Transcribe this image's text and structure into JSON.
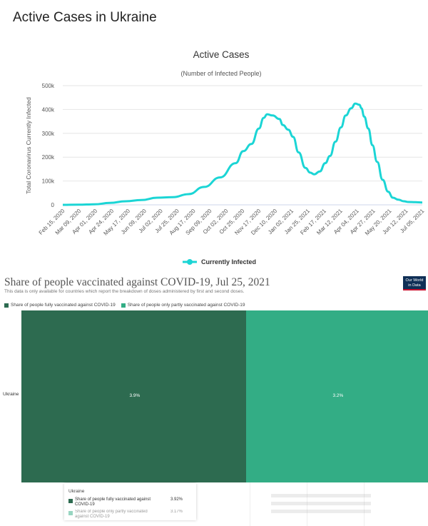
{
  "page_title": "Active Cases in Ukraine",
  "chart_data": [
    {
      "type": "line",
      "title": "Active Cases",
      "subtitle": "(Number of Infected People)",
      "ylabel": "Total Coronavirus Currently Infected",
      "ylim": [
        0,
        500000
      ],
      "yticks": [
        "0",
        "100k",
        "200k",
        "300k",
        "400k",
        "500k"
      ],
      "xtick_labels": [
        "Feb 15, 2020",
        "Mar 09, 2020",
        "Apr 01, 2020",
        "Apr 24, 2020",
        "May 17, 2020",
        "Jun 09, 2020",
        "Jul 02, 2020",
        "Jul 25, 2020",
        "Aug 17, 2020",
        "Sep 09, 2020",
        "Oct 02, 2020",
        "Oct 25, 2020",
        "Nov 17, 2020",
        "Dec 10, 2020",
        "Jan 02, 2021",
        "Jan 25, 2021",
        "Feb 17, 2021",
        "Mar 12, 2021",
        "Apr 04, 2021",
        "Apr 27, 2021",
        "May 20, 2021",
        "Jun 12, 2021",
        "Jul 05, 2021"
      ],
      "color": "#1bd5d5",
      "grid": true,
      "legend_position": "bottom",
      "series": [
        {
          "name": "Currently Infected",
          "x": [
            "2020-02-15",
            "2020-03-09",
            "2020-04-01",
            "2020-04-24",
            "2020-05-17",
            "2020-06-09",
            "2020-07-02",
            "2020-07-25",
            "2020-08-17",
            "2020-09-09",
            "2020-10-02",
            "2020-10-25",
            "2020-11-05",
            "2020-11-17",
            "2020-11-28",
            "2020-12-05",
            "2020-12-10",
            "2020-12-18",
            "2020-12-28",
            "2021-01-02",
            "2021-01-10",
            "2021-01-17",
            "2021-01-25",
            "2021-02-04",
            "2021-02-11",
            "2021-02-17",
            "2021-02-25",
            "2021-03-05",
            "2021-03-12",
            "2021-03-20",
            "2021-03-28",
            "2021-04-04",
            "2021-04-12",
            "2021-04-18",
            "2021-04-24",
            "2021-04-27",
            "2021-05-01",
            "2021-05-07",
            "2021-05-13",
            "2021-05-20",
            "2021-05-28",
            "2021-06-05",
            "2021-06-12",
            "2021-06-20",
            "2021-06-28",
            "2021-07-05",
            "2021-07-15",
            "2021-07-25"
          ],
          "values": [
            0,
            500,
            2000,
            8000,
            15000,
            20000,
            30000,
            32000,
            45000,
            75000,
            115000,
            175000,
            225000,
            255000,
            320000,
            365000,
            380000,
            375000,
            360000,
            335000,
            315000,
            285000,
            220000,
            155000,
            135000,
            128000,
            140000,
            175000,
            205000,
            265000,
            325000,
            375000,
            405000,
            425000,
            420000,
            405000,
            370000,
            320000,
            250000,
            180000,
            105000,
            55000,
            30000,
            22000,
            15000,
            12000,
            11000,
            10000
          ]
        }
      ]
    },
    {
      "type": "bar",
      "title": "Share of people vaccinated against COVID-19, Jul 25, 2021",
      "subtitle": "This data is only available for countries which report the breakdown of doses administered by first and second doses.",
      "categories": [
        "Ukraine"
      ],
      "series": [
        {
          "name": "Share of people fully vaccinated against COVID-19",
          "values": [
            3.92
          ],
          "label": "3.9%",
          "color": "#2d6b50"
        },
        {
          "name": "Share of people only partly vaccinated against COVID-19",
          "values": [
            3.17
          ],
          "label": "3.2%",
          "color": "#33ad85"
        }
      ],
      "legend_position": "top-left",
      "tooltip": {
        "title": "Ukraine",
        "rows": [
          {
            "label": "Share of people fully vaccinated against COVID-19",
            "value": "3.92%"
          },
          {
            "label": "Share of people only partly vaccinated against COVID-19",
            "value": "3.17%"
          }
        ]
      }
    }
  ],
  "owid_logo": {
    "line1": "Our World",
    "line2": "in Data"
  }
}
